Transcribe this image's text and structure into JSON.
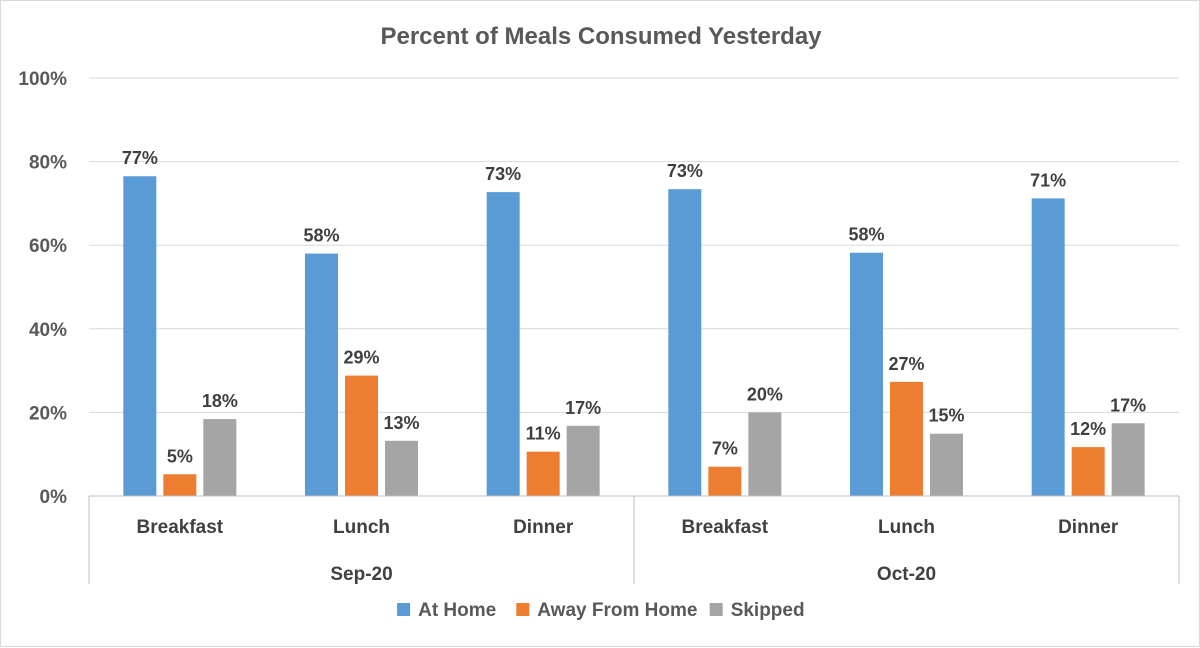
{
  "chart_data": {
    "type": "bar",
    "title": "Percent of Meals Consumed Yesterday",
    "xlabel": "",
    "ylabel": "",
    "ylim": [
      0,
      100
    ],
    "yticks": [
      0,
      20,
      40,
      60,
      80,
      100
    ],
    "ytick_labels": [
      "0%",
      "20%",
      "40%",
      "60%",
      "80%",
      "100%"
    ],
    "grid": true,
    "legend_position": "bottom",
    "groups": [
      {
        "label": "Sep-20",
        "categories": [
          "Breakfast",
          "Lunch",
          "Dinner"
        ]
      },
      {
        "label": "Oct-20",
        "categories": [
          "Breakfast",
          "Lunch",
          "Dinner"
        ]
      }
    ],
    "series": [
      {
        "name": "At Home",
        "color": "#5b9bd5",
        "values": [
          76.5,
          58,
          72.7,
          73.4,
          58.2,
          71.2
        ],
        "labels": [
          "77%",
          "58%",
          "73%",
          "73%",
          "58%",
          "71%"
        ]
      },
      {
        "name": "Away From Home",
        "color": "#ed7d31",
        "values": [
          5.2,
          28.8,
          10.6,
          7,
          27.3,
          11.7
        ],
        "labels": [
          "5%",
          "29%",
          "11%",
          "7%",
          "27%",
          "12%"
        ]
      },
      {
        "name": "Skipped",
        "color": "#a5a5a5",
        "values": [
          18.4,
          13.2,
          16.8,
          20,
          14.9,
          17.4
        ],
        "labels": [
          "18%",
          "13%",
          "17%",
          "20%",
          "15%",
          "17%"
        ]
      }
    ]
  }
}
